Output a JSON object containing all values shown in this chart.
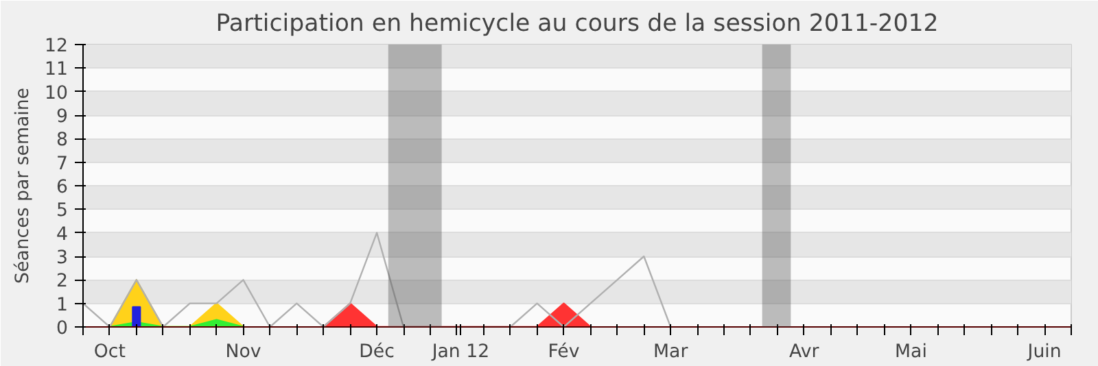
{
  "chart_data": {
    "type": "area",
    "title": "Participation en hemicycle au cours de la session 2011-2012",
    "ylabel": "Séances par semaine",
    "xlim": [
      "2011-09-29",
      "2012-06-14"
    ],
    "ylim": [
      0,
      12
    ],
    "yticks": [
      0,
      1,
      2,
      3,
      4,
      5,
      6,
      7,
      8,
      9,
      10,
      11,
      12
    ],
    "xticks": [
      {
        "value": "2011-09-29",
        "label": null
      },
      {
        "value": "2011-10-06",
        "label": "Oct"
      },
      {
        "value": "2011-10-13",
        "label": null
      },
      {
        "value": "2011-10-20",
        "label": null
      },
      {
        "value": "2011-10-27",
        "label": null
      },
      {
        "value": "2011-11-03",
        "label": null
      },
      {
        "value": "2011-11-10",
        "label": "Nov"
      },
      {
        "value": "2011-11-17",
        "label": null
      },
      {
        "value": "2011-11-24",
        "label": null
      },
      {
        "value": "2011-12-01",
        "label": null
      },
      {
        "value": "2011-12-08",
        "label": null
      },
      {
        "value": "2011-12-15",
        "label": "Déc"
      },
      {
        "value": "2011-12-22",
        "label": null
      },
      {
        "value": "2011-12-29",
        "label": null
      },
      {
        "value": "2012-01-05",
        "label": null
      },
      {
        "value": "2012-01-06",
        "label": "Jan 12"
      },
      {
        "value": "2012-01-12",
        "label": null
      },
      {
        "value": "2012-01-19",
        "label": null
      },
      {
        "value": "2012-01-26",
        "label": null
      },
      {
        "value": "2012-02-02",
        "label": "Fév"
      },
      {
        "value": "2012-02-09",
        "label": null
      },
      {
        "value": "2012-02-16",
        "label": null
      },
      {
        "value": "2012-02-23",
        "label": null
      },
      {
        "value": "2012-03-01",
        "label": "Mar"
      },
      {
        "value": "2012-03-08",
        "label": null
      },
      {
        "value": "2012-03-15",
        "label": null
      },
      {
        "value": "2012-03-22",
        "label": null
      },
      {
        "value": "2012-03-29",
        "label": null
      },
      {
        "value": "2012-04-05",
        "label": "Avr"
      },
      {
        "value": "2012-04-12",
        "label": null
      },
      {
        "value": "2012-04-19",
        "label": null
      },
      {
        "value": "2012-04-26",
        "label": null
      },
      {
        "value": "2012-05-03",
        "label": "Mai"
      },
      {
        "value": "2012-05-10",
        "label": null
      },
      {
        "value": "2012-05-17",
        "label": null
      },
      {
        "value": "2012-05-24",
        "label": null
      },
      {
        "value": "2012-05-31",
        "label": null
      },
      {
        "value": "2012-06-07",
        "label": "Juin"
      },
      {
        "value": "2012-06-14",
        "label": null
      }
    ],
    "grid": "y",
    "bands": [
      {
        "axis": "x",
        "from": "2011-12-18",
        "to": "2012-01-01",
        "color": "#464646"
      },
      {
        "axis": "x",
        "from": "2012-03-25",
        "to": "2012-04-01T12:00",
        "color": "#464646"
      }
    ],
    "series": [
      {
        "color": "#ffd21a",
        "x": [
          "2011-10-06",
          "2011-10-13",
          "2011-10-20",
          "2011-10-27",
          "2011-11-03",
          "2011-11-10"
        ],
        "values": [
          0,
          2,
          0,
          0,
          1,
          0
        ]
      },
      {
        "color": "#33ee33",
        "x": [
          "2011-10-06",
          "2011-10-13",
          "2011-10-20",
          "2011-10-27",
          "2011-11-03",
          "2011-11-10"
        ],
        "values": [
          0,
          0.2,
          0,
          0,
          0.3,
          0
        ]
      },
      {
        "color": "#ff3333",
        "x": [
          "2011-12-01",
          "2011-12-08",
          "2011-12-15",
          "2012-01-26",
          "2012-02-02",
          "2012-02-09"
        ],
        "values": [
          0,
          1,
          0,
          0,
          1,
          0
        ]
      },
      {
        "type": "line",
        "color": "#b0b0b0",
        "x": [
          "2011-09-29",
          "2011-10-06",
          "2011-10-13",
          "2011-10-20",
          "2011-10-27",
          "2011-11-03",
          "2011-11-10",
          "2011-11-17",
          "2011-11-24",
          "2011-12-01",
          "2011-12-08",
          "2011-12-15",
          "2011-12-22",
          "2011-12-29",
          "2012-01-05",
          "2012-01-12",
          "2012-01-19",
          "2012-01-26",
          "2012-02-02",
          "2012-02-09",
          "2012-02-16",
          "2012-02-23",
          "2012-03-01"
        ],
        "values": [
          1,
          0,
          2,
          0,
          1,
          1,
          2,
          0,
          1,
          0,
          1,
          4,
          0,
          0,
          0,
          0,
          0,
          1,
          0,
          1,
          2,
          3,
          0
        ]
      },
      {
        "type": "bar",
        "color": "#2222dd",
        "x": [
          "2011-10-13"
        ],
        "values": [
          0.85
        ]
      }
    ]
  }
}
